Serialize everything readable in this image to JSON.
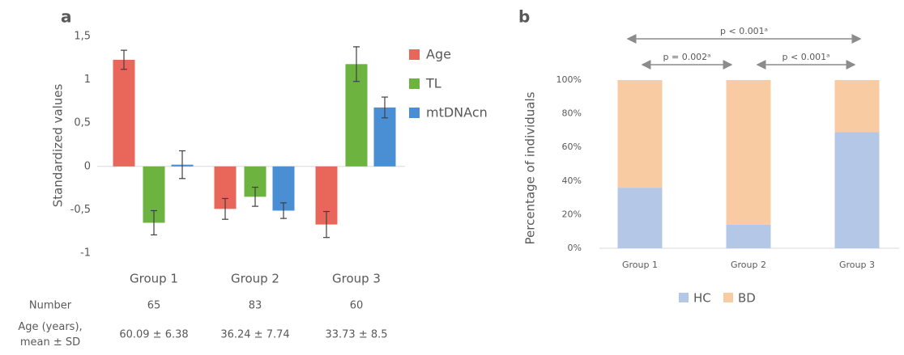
{
  "chart_data": [
    {
      "type": "bar",
      "panel": "a",
      "ylabel": "Standardized values",
      "categories": [
        "Group 1",
        "Group 2",
        "Group 3"
      ],
      "series": [
        {
          "name": "Age",
          "color": "#e8675a",
          "values": [
            1.23,
            -0.49,
            -0.67
          ],
          "errors": [
            0.11,
            0.12,
            0.15
          ]
        },
        {
          "name": "TL",
          "color": "#6cb33f",
          "values": [
            -0.65,
            -0.35,
            1.18
          ],
          "errors": [
            0.14,
            0.11,
            0.2
          ]
        },
        {
          "name": "mtDNAcn",
          "color": "#4a8fd4",
          "values": [
            0.02,
            -0.51,
            0.68
          ],
          "errors": [
            0.16,
            0.09,
            0.12
          ]
        }
      ],
      "ylim": [
        -1,
        1.5
      ],
      "yticks": [
        {
          "value": 1.5,
          "label": "1,5"
        },
        1,
        {
          "value": 0.5,
          "label": "0,5"
        },
        0,
        {
          "value": -0.5,
          "label": "-0,5"
        },
        -1
      ],
      "table": {
        "rows": [
          {
            "label": [
              "Number"
            ],
            "values": [
              "65",
              "83",
              "60"
            ]
          },
          {
            "label": [
              "Age (years),",
              "mean ± SD"
            ],
            "values": [
              "60.09 ± 6.38",
              "36.24 ± 7.74",
              "33.73 ± 8.5"
            ]
          }
        ]
      }
    },
    {
      "type": "stacked_bar",
      "panel": "b",
      "ylabel": "Percentage of individuals",
      "categories": [
        "Group 1",
        "Group 2",
        "Group 3"
      ],
      "series": [
        {
          "name": "HC",
          "color": "#b4c7e7",
          "values": [
            36,
            14,
            69
          ]
        },
        {
          "name": "BD",
          "color": "#f8cba3",
          "values": [
            64,
            86,
            31
          ]
        }
      ],
      "ylim": [
        0,
        100
      ],
      "yticks": [
        {
          "value": 0,
          "label": "0%"
        },
        {
          "value": 20,
          "label": "20%"
        },
        {
          "value": 40,
          "label": "40%"
        },
        {
          "value": 60,
          "label": "60%"
        },
        {
          "value": 80,
          "label": "80%"
        },
        {
          "value": 100,
          "label": "100%"
        }
      ],
      "annotations": [
        "p < 0.001ᵃ",
        "p = 0.002ᵃ",
        "p < 0.001ᵃ"
      ]
    }
  ]
}
